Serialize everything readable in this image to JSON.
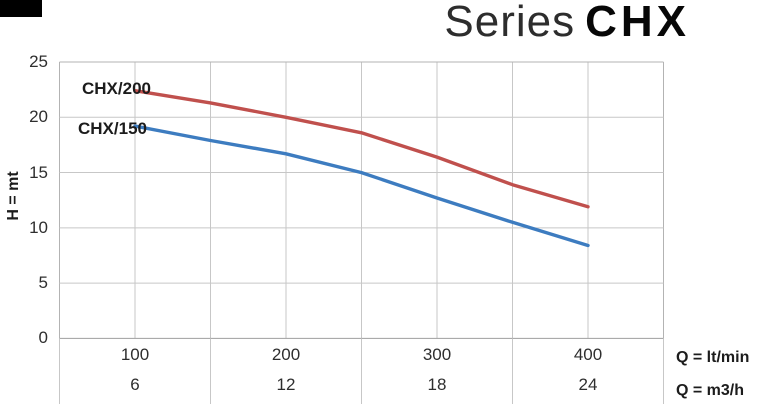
{
  "title": {
    "series_word": "Series",
    "model_word": "CHX"
  },
  "decorations": {
    "corner_mark": "black-rectangle"
  },
  "chart_data": {
    "type": "line",
    "title": "Series CHX",
    "ylabel": "H = mt",
    "xlabel_primary": "Q = lt/min",
    "xlabel_secondary": "Q = m3/h",
    "x_range_ltmin": [
      50,
      450
    ],
    "y_range": [
      0,
      25
    ],
    "grid": true,
    "grid_step_x_ltmin": 50,
    "grid_step_y": 5,
    "y_ticks": [
      25,
      20,
      15,
      10,
      5,
      0
    ],
    "x_ticks_ltmin": [
      100,
      200,
      300,
      400
    ],
    "x_ticks_m3h": [
      6,
      12,
      18,
      24
    ],
    "series": [
      {
        "name": "CHX/200",
        "color": "#c0504d",
        "x_ltmin": [
          100,
          150,
          200,
          250,
          300,
          350,
          400
        ],
        "h_mt": [
          22.4,
          21.3,
          20.0,
          18.6,
          16.4,
          13.9,
          11.9
        ]
      },
      {
        "name": "CHX/150",
        "color": "#3d7cc0",
        "x_ltmin": [
          100,
          150,
          200,
          250,
          300,
          350,
          400
        ],
        "h_mt": [
          19.2,
          17.9,
          16.7,
          15.0,
          12.7,
          10.5,
          8.4
        ]
      }
    ],
    "colors": {
      "grid": "#c7c7c7",
      "axis_zero_line": "#9e9e9e",
      "border": "#b3b3b3"
    },
    "legend_position": "curve-labels-inline"
  }
}
